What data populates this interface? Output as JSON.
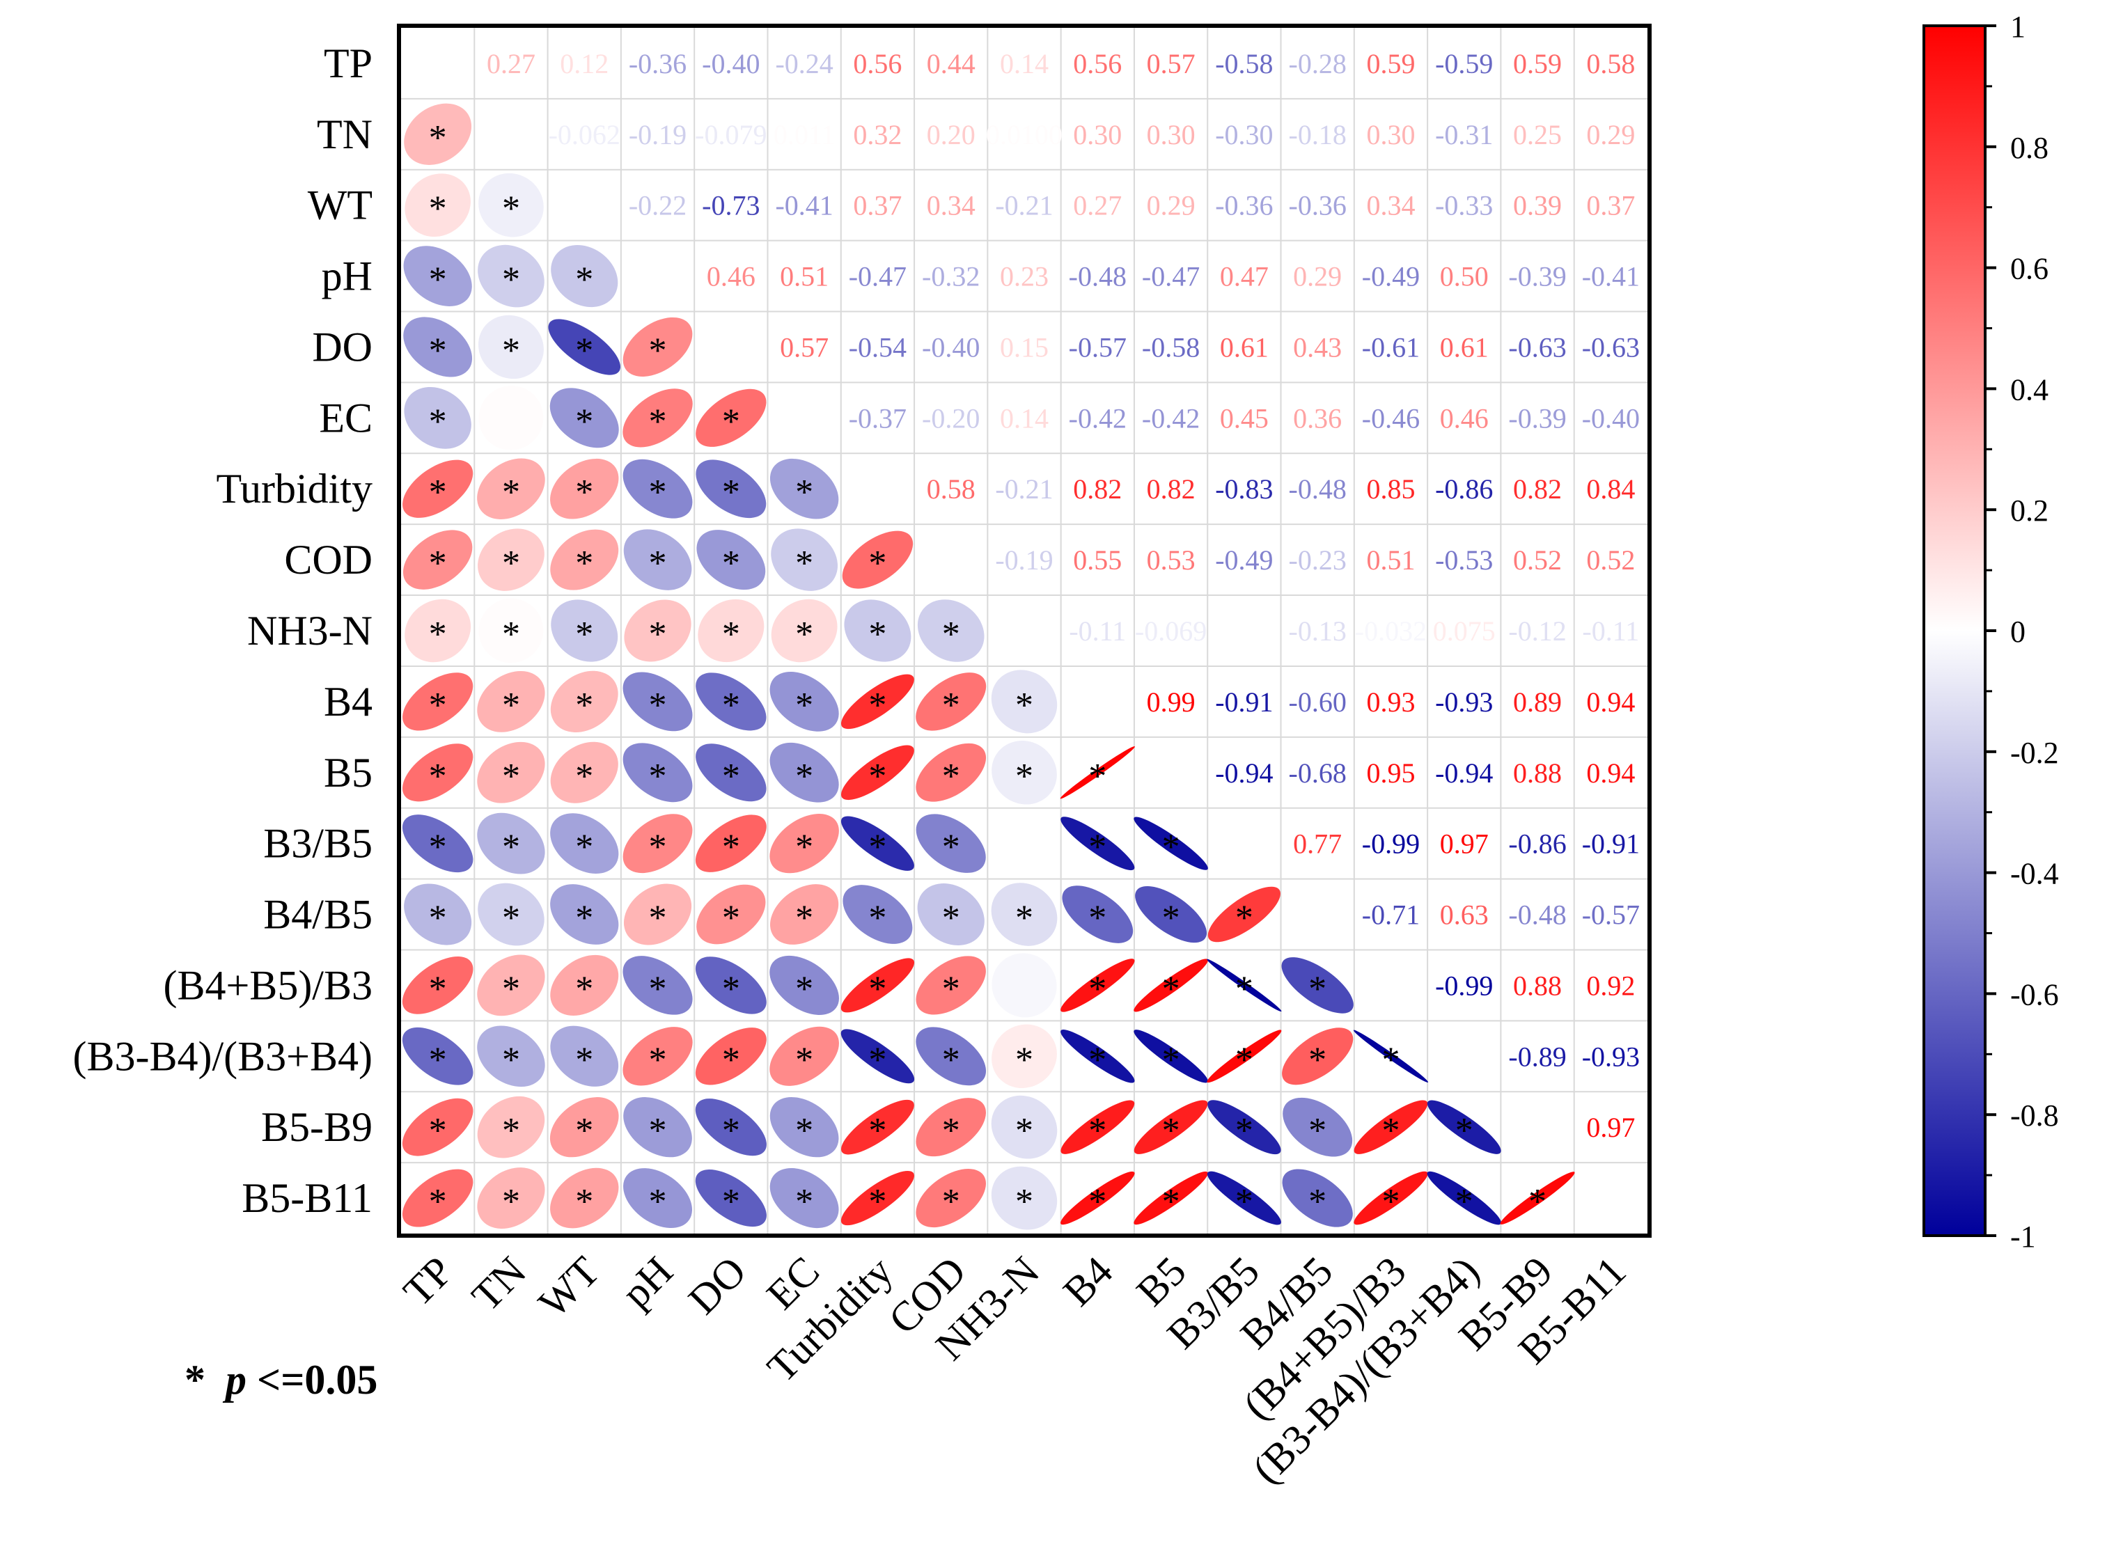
{
  "chart_data": {
    "type": "heatmap",
    "title": "",
    "variables": [
      "TP",
      "TN",
      "WT",
      "pH",
      "DO",
      "EC",
      "Turbidity",
      "COD",
      "NH3-N",
      "B4",
      "B5",
      "B3/B5",
      "B4/B5",
      "(B4+B5)/B3",
      "(B3-B4)/(B3+B4)",
      "B5-B9",
      "B5-B11"
    ],
    "matrix": [
      [
        null,
        0.27,
        0.12,
        -0.36,
        -0.4,
        -0.24,
        0.56,
        0.44,
        0.14,
        0.56,
        0.57,
        -0.58,
        -0.28,
        0.59,
        -0.59,
        0.59,
        0.58
      ],
      [
        0.27,
        null,
        -0.062,
        -0.19,
        -0.079,
        0.011,
        0.32,
        0.2,
        0.01,
        0.3,
        0.3,
        -0.3,
        -0.18,
        0.3,
        -0.31,
        0.25,
        0.29
      ],
      [
        0.12,
        -0.062,
        null,
        -0.22,
        -0.73,
        -0.41,
        0.37,
        0.34,
        -0.21,
        0.27,
        0.29,
        -0.36,
        -0.36,
        0.34,
        -0.33,
        0.39,
        0.37
      ],
      [
        -0.36,
        -0.19,
        -0.22,
        null,
        0.46,
        0.51,
        -0.47,
        -0.32,
        0.23,
        -0.48,
        -0.47,
        0.47,
        0.29,
        -0.49,
        0.5,
        -0.39,
        -0.41
      ],
      [
        -0.4,
        -0.079,
        -0.73,
        0.46,
        null,
        0.57,
        -0.54,
        -0.4,
        0.15,
        -0.57,
        -0.58,
        0.61,
        0.43,
        -0.61,
        0.61,
        -0.63,
        -0.63
      ],
      [
        -0.24,
        0.011,
        -0.41,
        0.51,
        0.57,
        null,
        -0.37,
        -0.2,
        0.14,
        -0.42,
        -0.42,
        0.45,
        0.36,
        -0.46,
        0.46,
        -0.39,
        -0.4
      ],
      [
        0.56,
        0.32,
        0.37,
        -0.47,
        -0.54,
        -0.37,
        null,
        0.58,
        -0.21,
        0.82,
        0.82,
        -0.83,
        -0.48,
        0.85,
        -0.86,
        0.82,
        0.84
      ],
      [
        0.44,
        0.2,
        0.34,
        -0.32,
        -0.4,
        -0.2,
        0.58,
        null,
        -0.19,
        0.55,
        0.53,
        -0.49,
        -0.23,
        0.51,
        -0.53,
        0.52,
        0.52
      ],
      [
        0.14,
        0.01,
        -0.21,
        0.23,
        0.15,
        0.14,
        -0.21,
        -0.19,
        null,
        -0.11,
        -0.069,
        0.0,
        -0.13,
        -0.032,
        0.075,
        -0.12,
        -0.11
      ],
      [
        0.56,
        0.3,
        0.27,
        -0.48,
        -0.57,
        -0.42,
        0.82,
        0.55,
        -0.11,
        null,
        0.99,
        -0.91,
        -0.6,
        0.93,
        -0.93,
        0.89,
        0.94
      ],
      [
        0.57,
        0.3,
        0.29,
        -0.47,
        -0.58,
        -0.42,
        0.82,
        0.53,
        -0.069,
        0.99,
        null,
        -0.94,
        -0.68,
        0.95,
        -0.94,
        0.88,
        0.94
      ],
      [
        -0.58,
        -0.3,
        -0.36,
        0.47,
        0.61,
        0.45,
        -0.83,
        -0.49,
        0.0,
        -0.91,
        -0.94,
        null,
        0.77,
        -0.99,
        0.97,
        -0.86,
        -0.91
      ],
      [
        -0.28,
        -0.18,
        -0.36,
        0.29,
        0.43,
        0.36,
        -0.48,
        -0.23,
        -0.13,
        -0.6,
        -0.68,
        0.77,
        null,
        -0.71,
        0.63,
        -0.48,
        -0.57
      ],
      [
        0.59,
        0.3,
        0.34,
        -0.49,
        -0.61,
        -0.46,
        0.85,
        0.51,
        -0.032,
        0.93,
        0.95,
        -0.99,
        -0.71,
        null,
        -0.99,
        0.88,
        0.92
      ],
      [
        -0.59,
        -0.31,
        -0.33,
        0.5,
        0.61,
        0.46,
        -0.86,
        -0.53,
        0.075,
        -0.93,
        -0.94,
        0.97,
        0.63,
        -0.99,
        null,
        -0.89,
        -0.93
      ],
      [
        0.59,
        0.25,
        0.39,
        -0.39,
        -0.63,
        -0.39,
        0.82,
        0.52,
        -0.12,
        0.89,
        0.88,
        -0.86,
        -0.48,
        0.88,
        -0.89,
        null,
        0.97
      ],
      [
        0.58,
        0.29,
        0.37,
        -0.41,
        -0.63,
        -0.4,
        0.84,
        0.52,
        -0.11,
        0.94,
        0.94,
        -0.91,
        -0.57,
        0.92,
        -0.93,
        0.97,
        null
      ]
    ],
    "upper_labels": [
      [
        null,
        "0.27",
        "0.12",
        "-0.36",
        "-0.40",
        "-0.24",
        "0.56",
        "0.44",
        "0.14",
        "0.56",
        "0.57",
        "-0.58",
        "-0.28",
        "0.59",
        "-0.59",
        "0.59",
        "0.58"
      ],
      [
        null,
        null,
        "-0.062",
        "-0.19",
        "-0.079",
        "0.011",
        "0.32",
        "0.20",
        "0.0100",
        "0.30",
        "0.30",
        "-0.30",
        "-0.18",
        "0.30",
        "-0.31",
        "0.25",
        "0.29"
      ],
      [
        null,
        null,
        null,
        "-0.22",
        "-0.73",
        "-0.41",
        "0.37",
        "0.34",
        "-0.21",
        "0.27",
        "0.29",
        "-0.36",
        "-0.36",
        "0.34",
        "-0.33",
        "0.39",
        "0.37"
      ],
      [
        null,
        null,
        null,
        null,
        "0.46",
        "0.51",
        "-0.47",
        "-0.32",
        "0.23",
        "-0.48",
        "-0.47",
        "0.47",
        "0.29",
        "-0.49",
        "0.50",
        "-0.39",
        "-0.41"
      ],
      [
        null,
        null,
        null,
        null,
        null,
        "0.57",
        "-0.54",
        "-0.40",
        "0.15",
        "-0.57",
        "-0.58",
        "0.61",
        "0.43",
        "-0.61",
        "0.61",
        "-0.63",
        "-0.63"
      ],
      [
        null,
        null,
        null,
        null,
        null,
        null,
        "-0.37",
        "-0.20",
        "0.14",
        "-0.42",
        "-0.42",
        "0.45",
        "0.36",
        "-0.46",
        "0.46",
        "-0.39",
        "-0.40"
      ],
      [
        null,
        null,
        null,
        null,
        null,
        null,
        null,
        "0.58",
        "-0.21",
        "0.82",
        "0.82",
        "-0.83",
        "-0.48",
        "0.85",
        "-0.86",
        "0.82",
        "0.84"
      ],
      [
        null,
        null,
        null,
        null,
        null,
        null,
        null,
        null,
        "-0.19",
        "0.55",
        "0.53",
        "-0.49",
        "-0.23",
        "0.51",
        "-0.53",
        "0.52",
        "0.52"
      ],
      [
        null,
        null,
        null,
        null,
        null,
        null,
        null,
        null,
        null,
        "-0.11",
        "-0.069",
        "",
        "-0.13",
        "-0.032",
        "0.075",
        "-0.12",
        "-0.11"
      ],
      [
        null,
        null,
        null,
        null,
        null,
        null,
        null,
        null,
        null,
        null,
        "0.99",
        "-0.91",
        "-0.60",
        "0.93",
        "-0.93",
        "0.89",
        "0.94"
      ],
      [
        null,
        null,
        null,
        null,
        null,
        null,
        null,
        null,
        null,
        null,
        null,
        "-0.94",
        "-0.68",
        "0.95",
        "-0.94",
        "0.88",
        "0.94"
      ],
      [
        null,
        null,
        null,
        null,
        null,
        null,
        null,
        null,
        null,
        null,
        null,
        null,
        "0.77",
        "-0.99",
        "0.97",
        "-0.86",
        "-0.91"
      ],
      [
        null,
        null,
        null,
        null,
        null,
        null,
        null,
        null,
        null,
        null,
        null,
        null,
        null,
        "-0.71",
        "0.63",
        "-0.48",
        "-0.57"
      ],
      [
        null,
        null,
        null,
        null,
        null,
        null,
        null,
        null,
        null,
        null,
        null,
        null,
        null,
        null,
        "-0.99",
        "0.88",
        "0.92"
      ],
      [
        null,
        null,
        null,
        null,
        null,
        null,
        null,
        null,
        null,
        null,
        null,
        null,
        null,
        null,
        null,
        "-0.89",
        "-0.93"
      ],
      [
        null,
        null,
        null,
        null,
        null,
        null,
        null,
        null,
        null,
        null,
        null,
        null,
        null,
        null,
        null,
        null,
        "0.97"
      ],
      [
        null,
        null,
        null,
        null,
        null,
        null,
        null,
        null,
        null,
        null,
        null,
        null,
        null,
        null,
        null,
        null,
        null
      ]
    ],
    "significant_lower": [
      [],
      [
        0
      ],
      [
        0,
        1
      ],
      [
        0,
        1,
        2
      ],
      [
        0,
        1,
        2,
        3
      ],
      [
        0,
        2,
        3,
        4
      ],
      [
        0,
        1,
        2,
        3,
        4,
        5
      ],
      [
        0,
        1,
        2,
        3,
        4,
        5,
        6
      ],
      [
        0,
        1,
        2,
        3,
        4,
        5,
        6,
        7
      ],
      [
        0,
        1,
        2,
        3,
        4,
        5,
        6,
        7,
        8
      ],
      [
        0,
        1,
        2,
        3,
        4,
        5,
        6,
        7,
        8,
        9
      ],
      [
        0,
        1,
        2,
        3,
        4,
        5,
        6,
        7,
        9,
        10
      ],
      [
        0,
        1,
        2,
        3,
        4,
        5,
        6,
        7,
        8,
        9,
        10,
        11
      ],
      [
        0,
        1,
        2,
        3,
        4,
        5,
        6,
        7,
        9,
        10,
        11,
        12
      ],
      [
        0,
        1,
        2,
        3,
        4,
        5,
        6,
        7,
        8,
        9,
        10,
        11,
        12,
        13
      ],
      [
        0,
        1,
        2,
        3,
        4,
        5,
        6,
        7,
        8,
        9,
        10,
        11,
        12,
        13,
        14
      ],
      [
        0,
        1,
        2,
        3,
        4,
        5,
        6,
        7,
        8,
        9,
        10,
        11,
        12,
        13,
        14,
        15
      ]
    ],
    "colorbar": {
      "range": [
        -1,
        1
      ],
      "ticks": [
        "1",
        "0.8",
        "0.6",
        "0.4",
        "0.2",
        "0",
        "-0.2",
        "-0.4",
        "-0.6",
        "-0.8",
        "-1"
      ],
      "colors": {
        "negative": "#00009b",
        "zero": "#ffffff",
        "positive": "#ff0000"
      }
    },
    "significance_star": "*",
    "legend_note": {
      "star": "*",
      "p_label": "p",
      "condition": "<=0.05"
    }
  }
}
